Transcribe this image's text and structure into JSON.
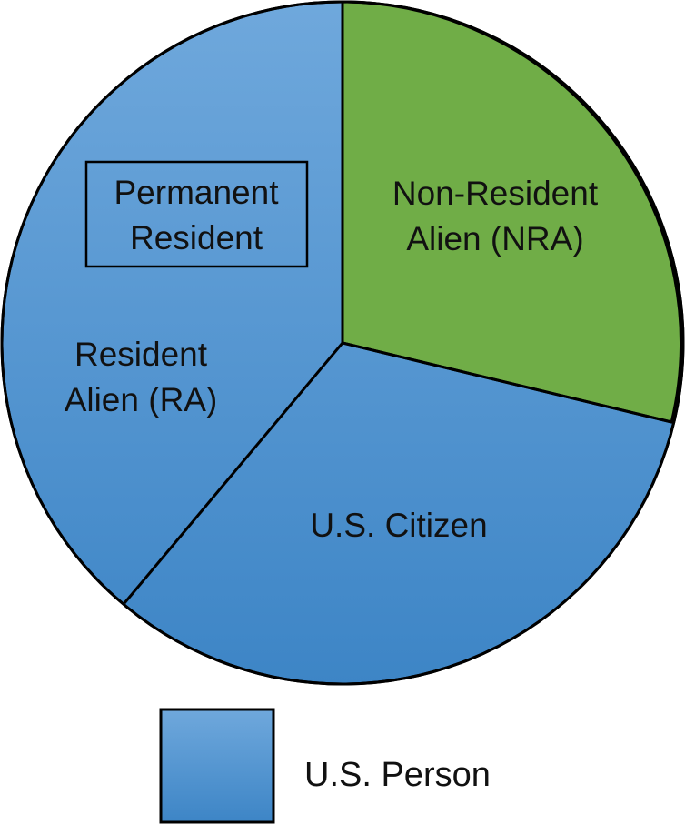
{
  "colors": {
    "us_person_blue_light": "#6fa8dc",
    "us_person_blue_dark": "#3d85c6",
    "nra_green": "#70ad47",
    "outline": "#000000"
  },
  "diagram": {
    "segments": {
      "nra": {
        "line1": "Non-Resident",
        "line2": "Alien (NRA)"
      },
      "us_citizen": {
        "label": "U.S. Citizen"
      },
      "resident_alien": {
        "line1": "Resident",
        "line2": "Alien (RA)"
      },
      "permanent_resident": {
        "line1": "Permanent",
        "line2": "Resident"
      }
    },
    "legend": {
      "label": "U.S. Person"
    }
  }
}
